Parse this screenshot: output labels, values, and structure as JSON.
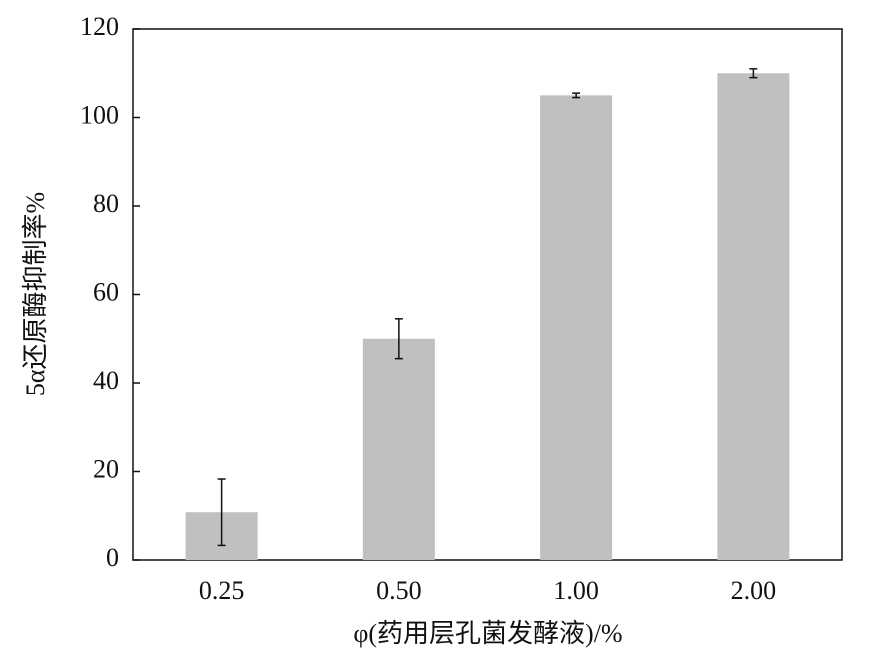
{
  "chart_data": {
    "type": "bar",
    "x_label": "φ(药用层孔菌发酵液)/%",
    "y_label": "5α还原酶抑制率%",
    "categories": [
      "0.25",
      "0.50",
      "1.00",
      "2.00"
    ],
    "values": [
      10.8,
      50,
      105,
      110
    ],
    "errors": [
      7.5,
      4.5,
      0.5,
      1
    ],
    "color": "#bfc0bf",
    "ylim": [
      0,
      120
    ],
    "yticks": [
      0,
      20,
      40,
      60,
      80,
      100,
      120
    ],
    "grid": false
  }
}
